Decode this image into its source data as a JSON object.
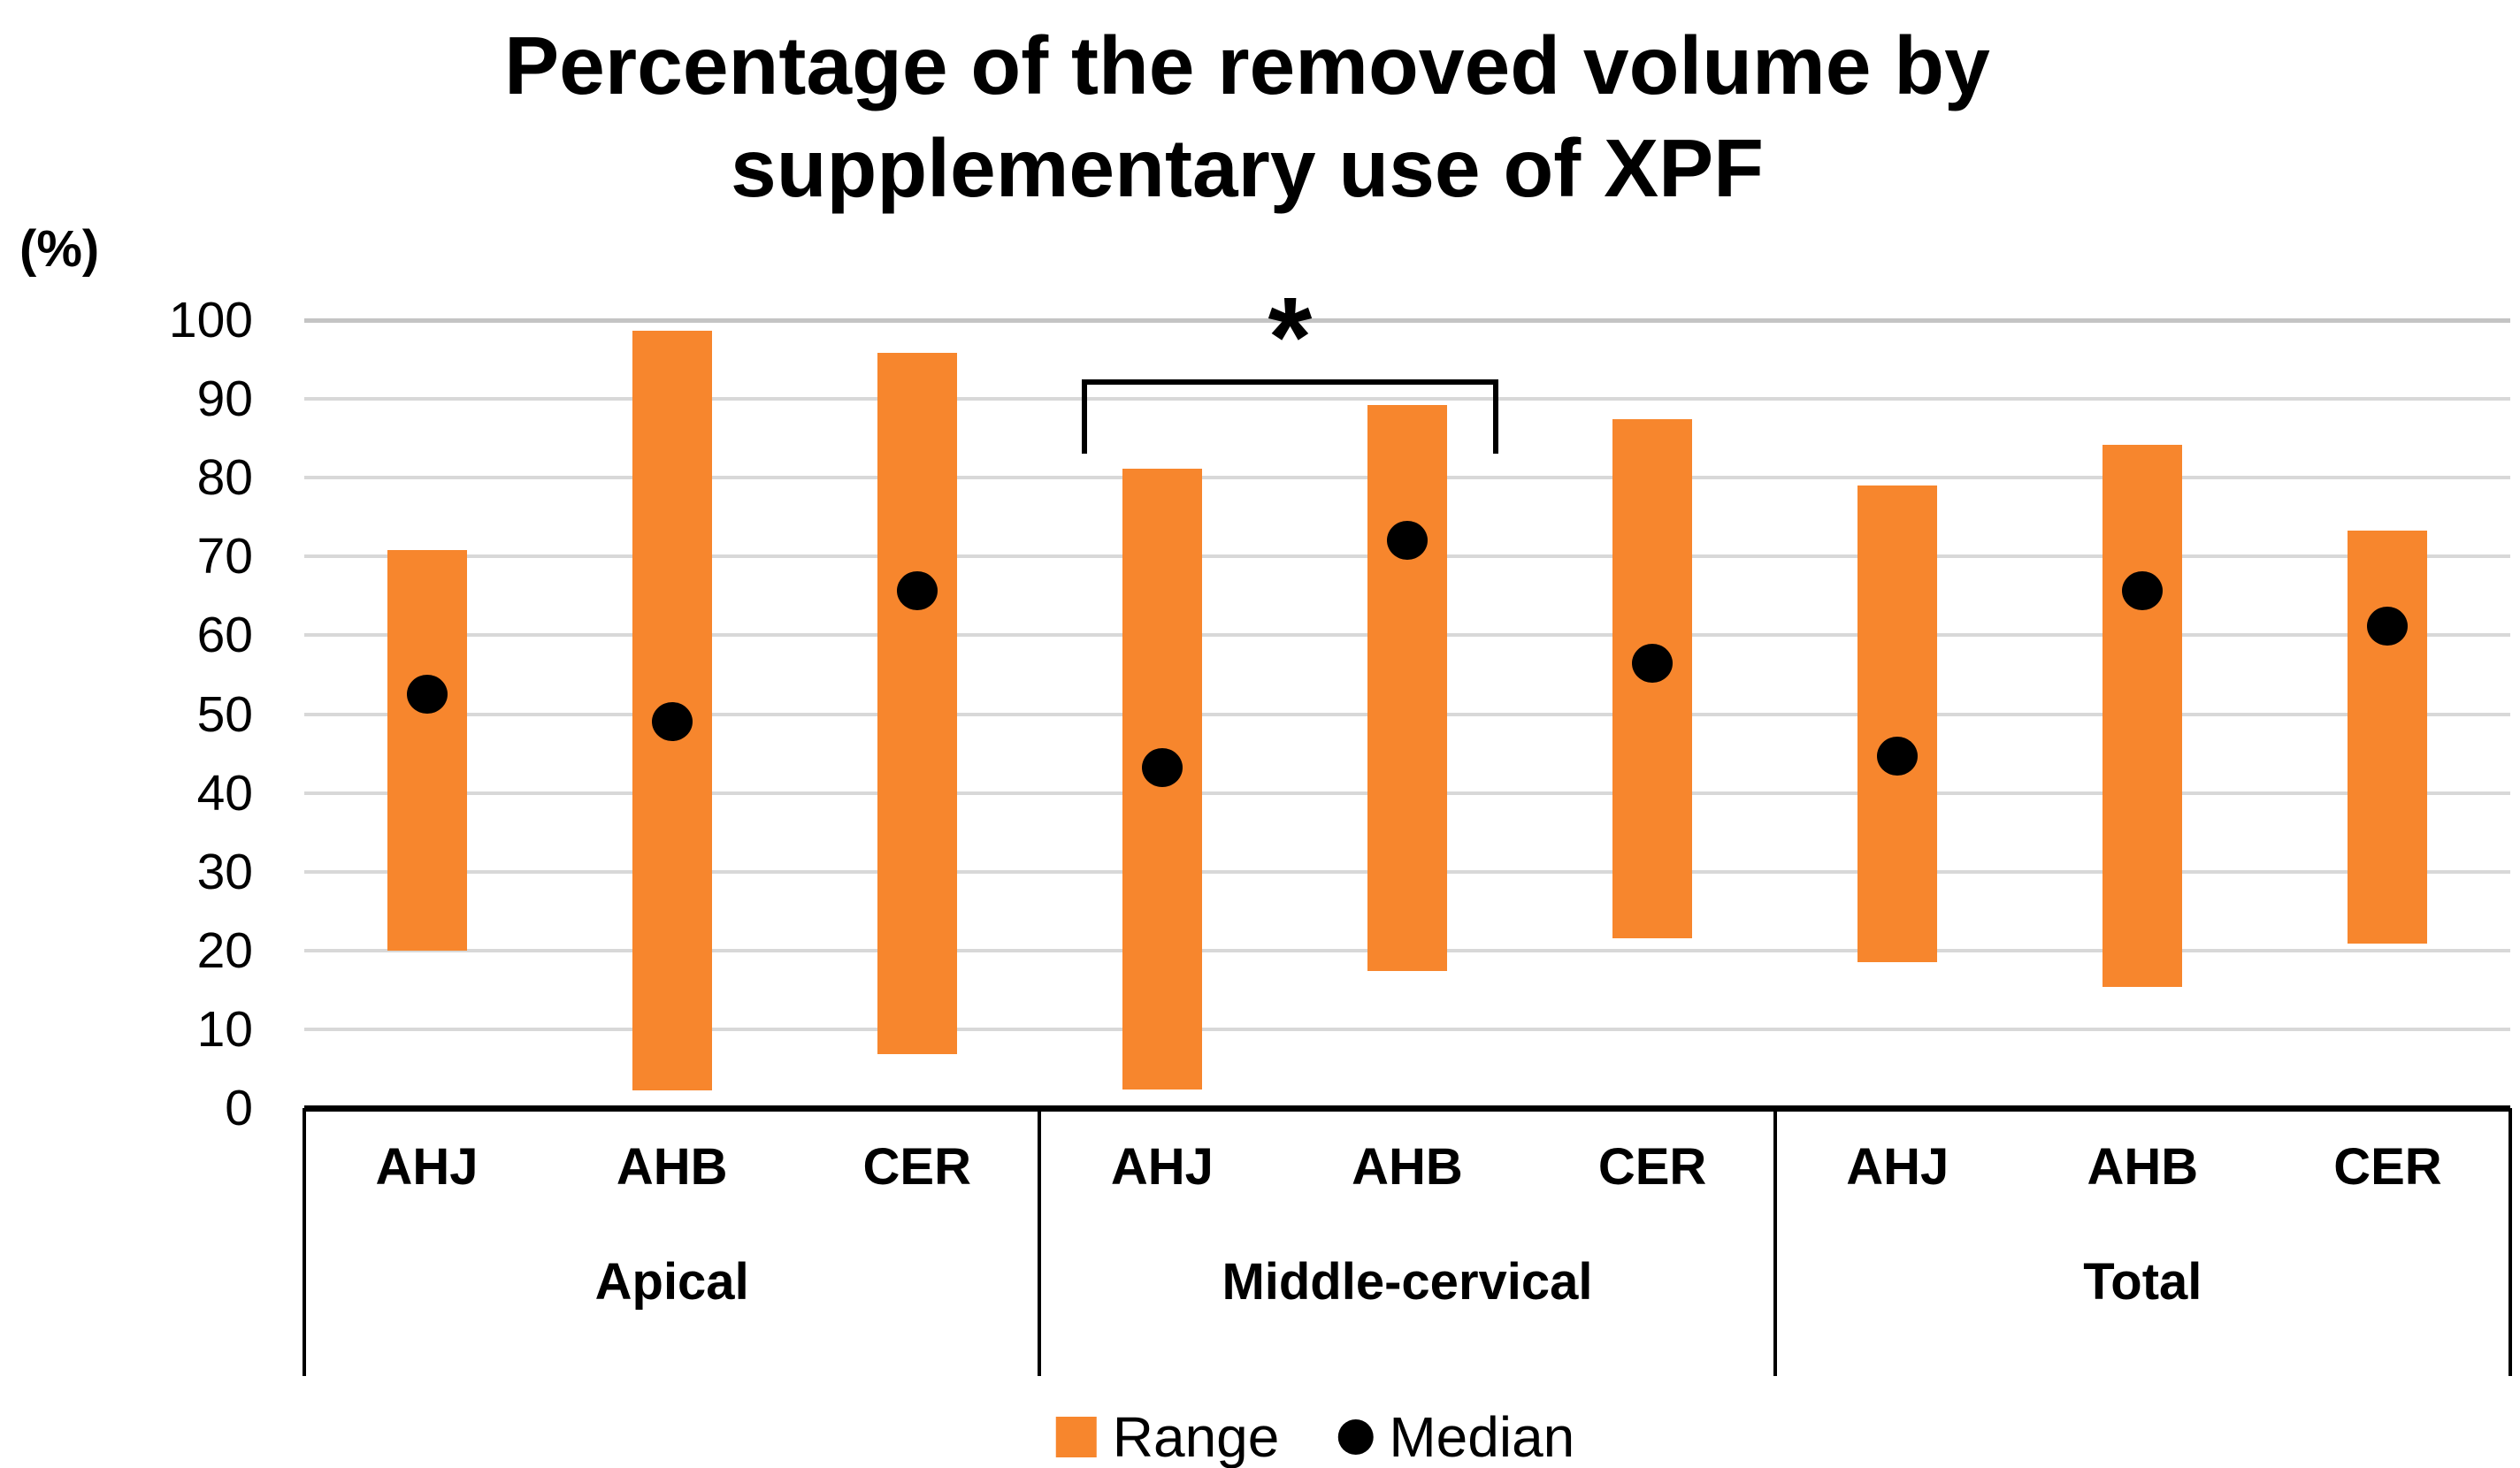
{
  "page": {
    "background": "#ffffff"
  },
  "title_line1": "Percentage of the removed volume by",
  "title_line2": "supplementary use of XPF",
  "chart_data": {
    "type": "bar",
    "variant": "floating-range-bars-with-median-points",
    "title": "Percentage of the removed volume by supplementary use of XPF",
    "ylabel": "(%)",
    "xlabel": "",
    "ylim": [
      0,
      100
    ],
    "yticks": [
      100,
      90,
      80,
      70,
      60,
      50,
      40,
      30,
      20,
      10,
      0
    ],
    "grid": true,
    "groups": [
      "Apical",
      "Middle-cervical",
      "Total"
    ],
    "categories_per_group": [
      "AHJ",
      "AHB",
      "CER"
    ],
    "series": [
      {
        "group": "Apical",
        "category": "AHJ",
        "range": [
          20.0,
          70.8
        ],
        "median": 52.5
      },
      {
        "group": "Apical",
        "category": "AHB",
        "range": [
          2.3,
          98.6
        ],
        "median": 49.0
      },
      {
        "group": "Apical",
        "category": "CER",
        "range": [
          6.8,
          95.9
        ],
        "median": 65.7
      },
      {
        "group": "Middle-cervical",
        "category": "AHJ",
        "range": [
          2.4,
          81.2
        ],
        "median": 43.2
      },
      {
        "group": "Middle-cervical",
        "category": "AHB",
        "range": [
          17.4,
          89.2
        ],
        "median": 72.0
      },
      {
        "group": "Middle-cervical",
        "category": "CER",
        "range": [
          21.6,
          87.4
        ],
        "median": 56.4
      },
      {
        "group": "Total",
        "category": "AHJ",
        "range": [
          18.5,
          79.0
        ],
        "median": 44.7
      },
      {
        "group": "Total",
        "category": "AHB",
        "range": [
          15.4,
          84.2
        ],
        "median": 65.7
      },
      {
        "group": "Total",
        "category": "CER",
        "range": [
          20.9,
          73.3
        ],
        "median": 61.2
      }
    ],
    "legend_items": [
      {
        "label": "Range",
        "marker": "square"
      },
      {
        "label": "Median",
        "marker": "dot"
      }
    ],
    "legend_position": "bottom",
    "annotation": {
      "symbol": "*",
      "group": "Middle-cervical",
      "from_category": "AHJ",
      "to_category": "AHB"
    },
    "colors": {
      "range_bar": "#F7862D",
      "median_dot": "#000000",
      "gridline": "#D8D8D8",
      "axis": "#000000",
      "text": "#000000"
    }
  }
}
